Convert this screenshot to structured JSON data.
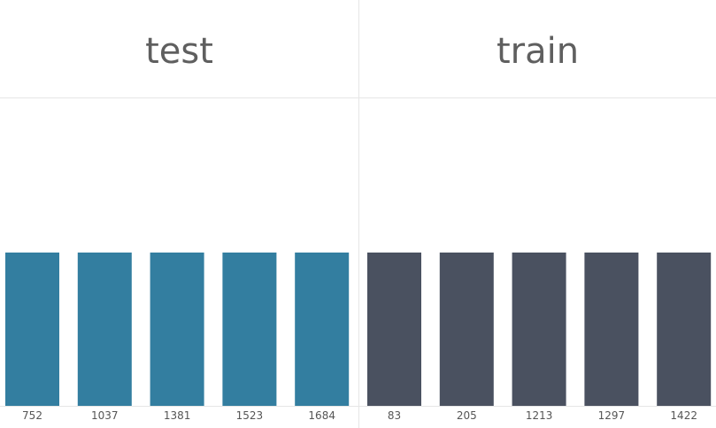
{
  "chart_data": [
    {
      "type": "bar",
      "title": "test",
      "categories": [
        "752",
        "1037",
        "1381",
        "1523",
        "1684"
      ],
      "values": [
        1,
        1,
        1,
        1,
        1
      ],
      "color": "#337ea0",
      "grid": false,
      "legend": "none"
    },
    {
      "type": "bar",
      "title": "train",
      "categories": [
        "83",
        "205",
        "1213",
        "1297",
        "1422"
      ],
      "values": [
        1,
        1,
        1,
        1,
        1
      ],
      "color": "#4a5160",
      "grid": false,
      "legend": "none"
    }
  ]
}
